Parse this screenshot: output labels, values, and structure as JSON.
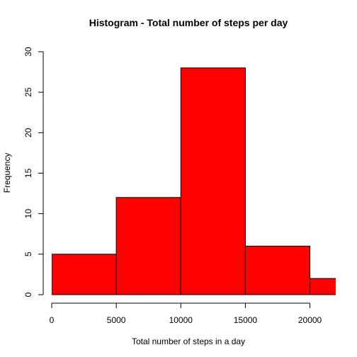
{
  "chart_data": {
    "type": "bar",
    "title": "Histogram - Total number of steps per day",
    "xlabel": "Total number of steps in a day",
    "ylabel": "Frequency",
    "bins": [
      {
        "from": 0,
        "to": 5000,
        "count": 5
      },
      {
        "from": 5000,
        "to": 10000,
        "count": 12
      },
      {
        "from": 10000,
        "to": 15000,
        "count": 28
      },
      {
        "from": 15000,
        "to": 20000,
        "count": 6
      },
      {
        "from": 20000,
        "to": 25000,
        "count": 2
      }
    ],
    "xlim": [
      0,
      22000
    ],
    "ylim": [
      0,
      30
    ],
    "x_ticks": [
      0,
      5000,
      10000,
      15000,
      20000
    ],
    "y_ticks": [
      0,
      5,
      10,
      15,
      20,
      25,
      30
    ],
    "bar_color": "#ff0000",
    "edge_color": "#000000",
    "grid": false
  }
}
